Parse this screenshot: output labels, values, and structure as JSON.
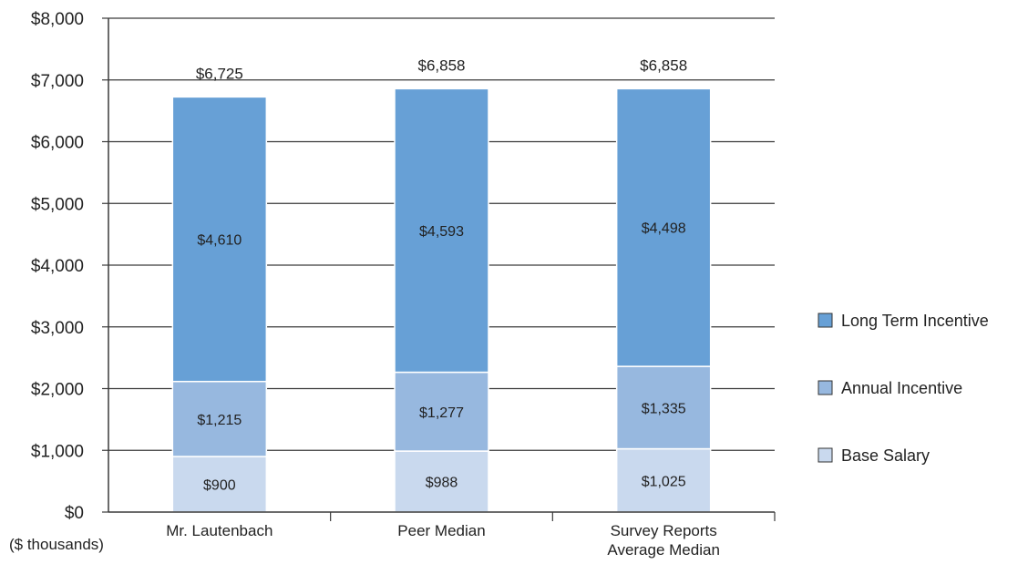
{
  "chart_data": {
    "type": "bar",
    "stacked": true,
    "unit_label": "($ thousands)",
    "categories": [
      [
        "Mr. Lautenbach"
      ],
      [
        "Peer Median"
      ],
      [
        "Survey Reports",
        "Average Median"
      ]
    ],
    "series": [
      {
        "name": "Base Salary",
        "color": "#c9d9ee",
        "values": [
          900,
          988,
          1025
        ],
        "labels": [
          "$900",
          "$988",
          "$1,025"
        ]
      },
      {
        "name": "Annual Incentive",
        "color": "#97b8df",
        "values": [
          1215,
          1277,
          1335
        ],
        "labels": [
          "$1,215",
          "$1,277",
          "$1,335"
        ]
      },
      {
        "name": "Long Term Incentive",
        "color": "#67a0d6",
        "values": [
          4610,
          4593,
          4498
        ],
        "labels": [
          "$4,610",
          "$4,593",
          "$4,498"
        ]
      }
    ],
    "totals": [
      6725,
      6858,
      6858
    ],
    "total_labels": [
      "$6,725",
      "$6,858",
      "$6,858"
    ],
    "ylim": [
      0,
      8000
    ],
    "yticks": [
      0,
      1000,
      2000,
      3000,
      4000,
      5000,
      6000,
      7000,
      8000
    ],
    "ytick_labels": [
      "$0",
      "$1,000",
      "$2,000",
      "$3,000",
      "$4,000",
      "$5,000",
      "$6,000",
      "$7,000",
      "$8,000"
    ],
    "grid": true,
    "legend_position": "right",
    "legend_order": [
      "Long Term Incentive",
      "Annual Incentive",
      "Base Salary"
    ]
  }
}
